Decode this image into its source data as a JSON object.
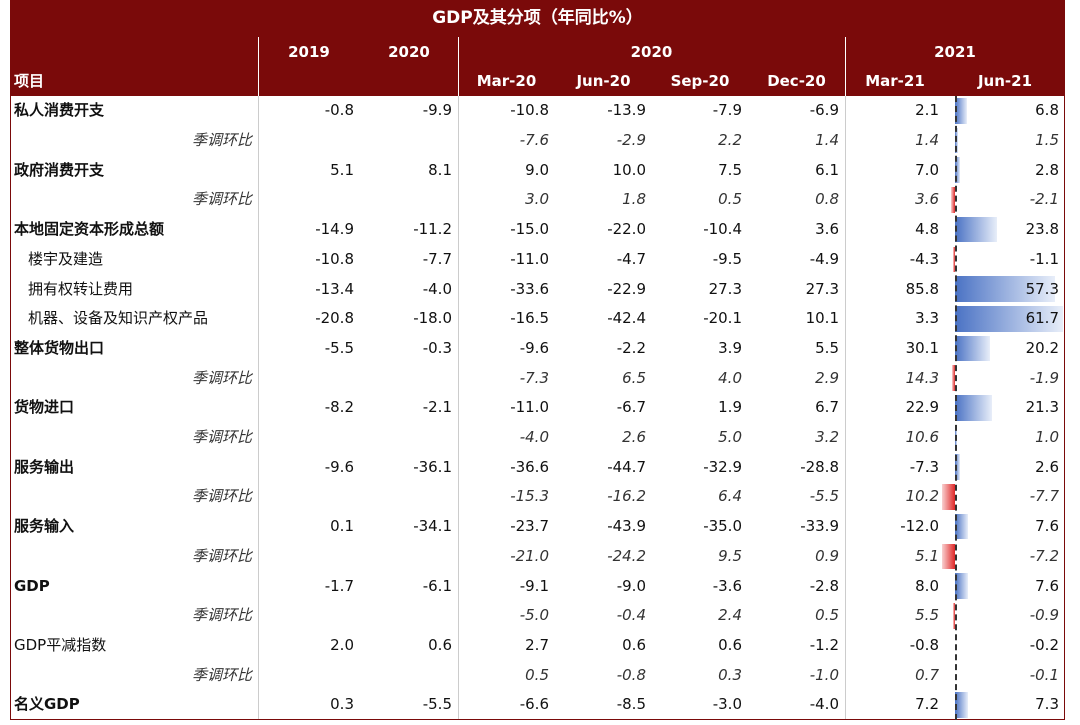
{
  "header": {
    "title": "GDP及其分项（年同比%）",
    "years": [
      "2019",
      "2020",
      "2020",
      "2021"
    ],
    "item_label": "项目",
    "periods": [
      "Mar-20",
      "Jun-20",
      "Sep-20",
      "Dec-20",
      "Mar-21",
      "Jun-21"
    ]
  },
  "table": {
    "rows": [
      {
        "style": "main",
        "label": "私人消费开支",
        "cells": [
          "-0.8",
          "-9.9",
          "-10.8",
          "-13.9",
          "-7.9",
          "-6.9",
          "2.1",
          "6.8"
        ]
      },
      {
        "style": "qoq",
        "label": "季调环比",
        "cells": [
          null,
          null,
          "-7.6",
          "-2.9",
          "2.2",
          "1.4",
          "1.4",
          "1.5"
        ]
      },
      {
        "style": "main",
        "label": "政府消费开支",
        "cells": [
          "5.1",
          "8.1",
          "9.0",
          "10.0",
          "7.5",
          "6.1",
          "7.0",
          "2.8"
        ]
      },
      {
        "style": "qoq",
        "label": "季调环比",
        "cells": [
          null,
          null,
          "3.0",
          "1.8",
          "0.5",
          "0.8",
          "3.6",
          "-2.1"
        ]
      },
      {
        "style": "main",
        "label": "本地固定资本形成总额",
        "cells": [
          "-14.9",
          "-11.2",
          "-15.0",
          "-22.0",
          "-10.4",
          "3.6",
          "4.8",
          "23.8"
        ]
      },
      {
        "style": "sub",
        "label": "楼宇及建造",
        "cells": [
          "-10.8",
          "-7.7",
          "-11.0",
          "-4.7",
          "-9.5",
          "-4.9",
          "-4.3",
          "-1.1"
        ]
      },
      {
        "style": "sub",
        "label": "拥有权转让费用",
        "cells": [
          "-13.4",
          "-4.0",
          "-33.6",
          "-22.9",
          "27.3",
          "27.3",
          "85.8",
          "57.3"
        ]
      },
      {
        "style": "sub",
        "label": "机器、设备及知识产权产品",
        "cells": [
          "-20.8",
          "-18.0",
          "-16.5",
          "-42.4",
          "-20.1",
          "10.1",
          "3.3",
          "61.7"
        ]
      },
      {
        "style": "main",
        "label": "整体货物出口",
        "cells": [
          "-5.5",
          "-0.3",
          "-9.6",
          "-2.2",
          "3.9",
          "5.5",
          "30.1",
          "20.2"
        ]
      },
      {
        "style": "qoq",
        "label": "季调环比",
        "cells": [
          null,
          null,
          "-7.3",
          "6.5",
          "4.0",
          "2.9",
          "14.3",
          "-1.9"
        ]
      },
      {
        "style": "main",
        "label": "货物进口",
        "cells": [
          "-8.2",
          "-2.1",
          "-11.0",
          "-6.7",
          "1.9",
          "6.7",
          "22.9",
          "21.3"
        ]
      },
      {
        "style": "qoq",
        "label": "季调环比",
        "cells": [
          null,
          null,
          "-4.0",
          "2.6",
          "5.0",
          "3.2",
          "10.6",
          "1.0"
        ]
      },
      {
        "style": "main",
        "label": "服务输出",
        "cells": [
          "-9.6",
          "-36.1",
          "-36.6",
          "-44.7",
          "-32.9",
          "-28.8",
          "-7.3",
          "2.6"
        ]
      },
      {
        "style": "qoq",
        "label": "季调环比",
        "cells": [
          null,
          null,
          "-15.3",
          "-16.2",
          "6.4",
          "-5.5",
          "10.2",
          "-7.7"
        ]
      },
      {
        "style": "main",
        "label": "服务输入",
        "cells": [
          "0.1",
          "-34.1",
          "-23.7",
          "-43.9",
          "-35.0",
          "-33.9",
          "-12.0",
          "7.6"
        ]
      },
      {
        "style": "qoq",
        "label": "季调环比",
        "cells": [
          null,
          null,
          "-21.0",
          "-24.2",
          "9.5",
          "0.9",
          "5.1",
          "-7.2"
        ]
      },
      {
        "style": "main",
        "label": "GDP",
        "cells": [
          "-1.7",
          "-6.1",
          "-9.1",
          "-9.0",
          "-3.6",
          "-2.8",
          "8.0",
          "7.6"
        ]
      },
      {
        "style": "qoq",
        "label": "季调环比",
        "cells": [
          null,
          null,
          "-5.0",
          "-0.4",
          "2.4",
          "0.5",
          "5.5",
          "-0.9"
        ]
      },
      {
        "style": "plain",
        "label": "GDP平减指数",
        "cells": [
          "2.0",
          "0.6",
          "2.7",
          "0.6",
          "0.6",
          "-1.2",
          "-0.8",
          "-0.2"
        ]
      },
      {
        "style": "qoq",
        "label": "季调环比",
        "cells": [
          null,
          null,
          "0.5",
          "-0.8",
          "0.3",
          "-1.0",
          "0.7",
          "-0.1"
        ]
      },
      {
        "style": "main",
        "label": "名义GDP",
        "cells": [
          "0.3",
          "-5.5",
          "-6.6",
          "-8.5",
          "-3.0",
          "-4.0",
          "7.2",
          "7.3"
        ]
      }
    ]
  }
}
